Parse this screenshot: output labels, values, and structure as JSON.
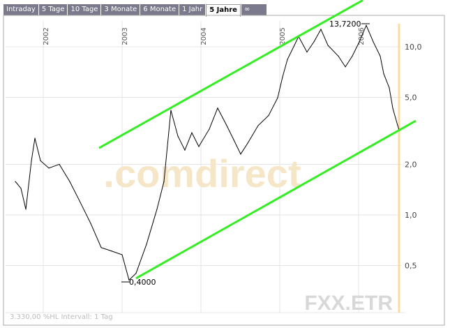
{
  "tabs": [
    {
      "label": "Intraday"
    },
    {
      "label": "5 Tage"
    },
    {
      "label": "10 Tage"
    },
    {
      "label": "3 Monate"
    },
    {
      "label": "6 Monate"
    },
    {
      "label": "1 Jahr"
    },
    {
      "label": "5 Jahre",
      "active": true
    },
    {
      "label": "∞"
    }
  ],
  "chart_data": {
    "type": "line",
    "y_scale": "log",
    "ylim": [
      0.3,
      14
    ],
    "xlim": [
      2001.6,
      2006.55
    ],
    "grid": true,
    "x_ticks": [
      "2002",
      "2003",
      "2004",
      "2005",
      "2006"
    ],
    "y_ticks": [
      {
        "v": 10,
        "label": "10,0"
      },
      {
        "v": 5,
        "label": "5,0"
      },
      {
        "v": 2,
        "label": "2,0"
      },
      {
        "v": 1,
        "label": "1,0"
      },
      {
        "v": 0.5,
        "label": "0,5"
      }
    ],
    "series": [
      {
        "x": [
          2001.646,
          2001.717,
          2001.779,
          2001.85,
          2001.894,
          2001.965,
          2002.071,
          2002.204,
          2002.336,
          2002.469,
          2002.602,
          2002.735,
          2002.867,
          2003.0,
          2003.088,
          2003.177,
          2003.31,
          2003.442,
          2003.531,
          2003.619,
          2003.708,
          2003.796,
          2003.885,
          2003.973,
          2004.106,
          2004.212,
          2004.327,
          2004.416,
          2004.504,
          2004.593,
          2004.726,
          2004.858,
          2004.973,
          2005.035,
          2005.097,
          2005.239,
          2005.345,
          2005.434,
          2005.522,
          2005.611,
          2005.743,
          2005.832,
          2005.92,
          2006.009,
          2006.097,
          2006.186,
          2006.274,
          2006.319,
          2006.389,
          2006.434,
          2006.496,
          2006.513
        ],
        "y": [
          1.58,
          1.44,
          1.08,
          2.1,
          2.86,
          2.1,
          1.9,
          2.0,
          1.58,
          1.19,
          0.89,
          0.64,
          0.61,
          0.58,
          0.41,
          0.45,
          0.67,
          1.08,
          1.58,
          4.19,
          2.94,
          2.43,
          3.08,
          2.55,
          3.24,
          4.32,
          3.4,
          2.8,
          2.3,
          2.67,
          3.4,
          3.9,
          4.97,
          6.6,
          8.4,
          11.5,
          9.3,
          10.7,
          12.7,
          10.2,
          8.8,
          7.6,
          8.8,
          10.7,
          13.4,
          10.7,
          8.8,
          6.9,
          5.7,
          4.3,
          3.4,
          3.2
        ],
        "color": "#000000"
      }
    ],
    "trend_lines": [
      {
        "x": [
          2002.708,
          2006.053
        ],
        "y": [
          2.5,
          18.9
        ],
        "color": "#33ee22"
      },
      {
        "x": [
          2003.177,
          2006.726
        ],
        "y": [
          0.42,
          3.63
        ],
        "color": "#33ee22"
      }
    ],
    "annotations": {
      "max": "13,7200",
      "min": "0,4000"
    },
    "watermark": ".comdirect",
    "symbol": "FXX.ETR",
    "footer": "3.330,00 %HL Intervall: 1 Tag"
  }
}
